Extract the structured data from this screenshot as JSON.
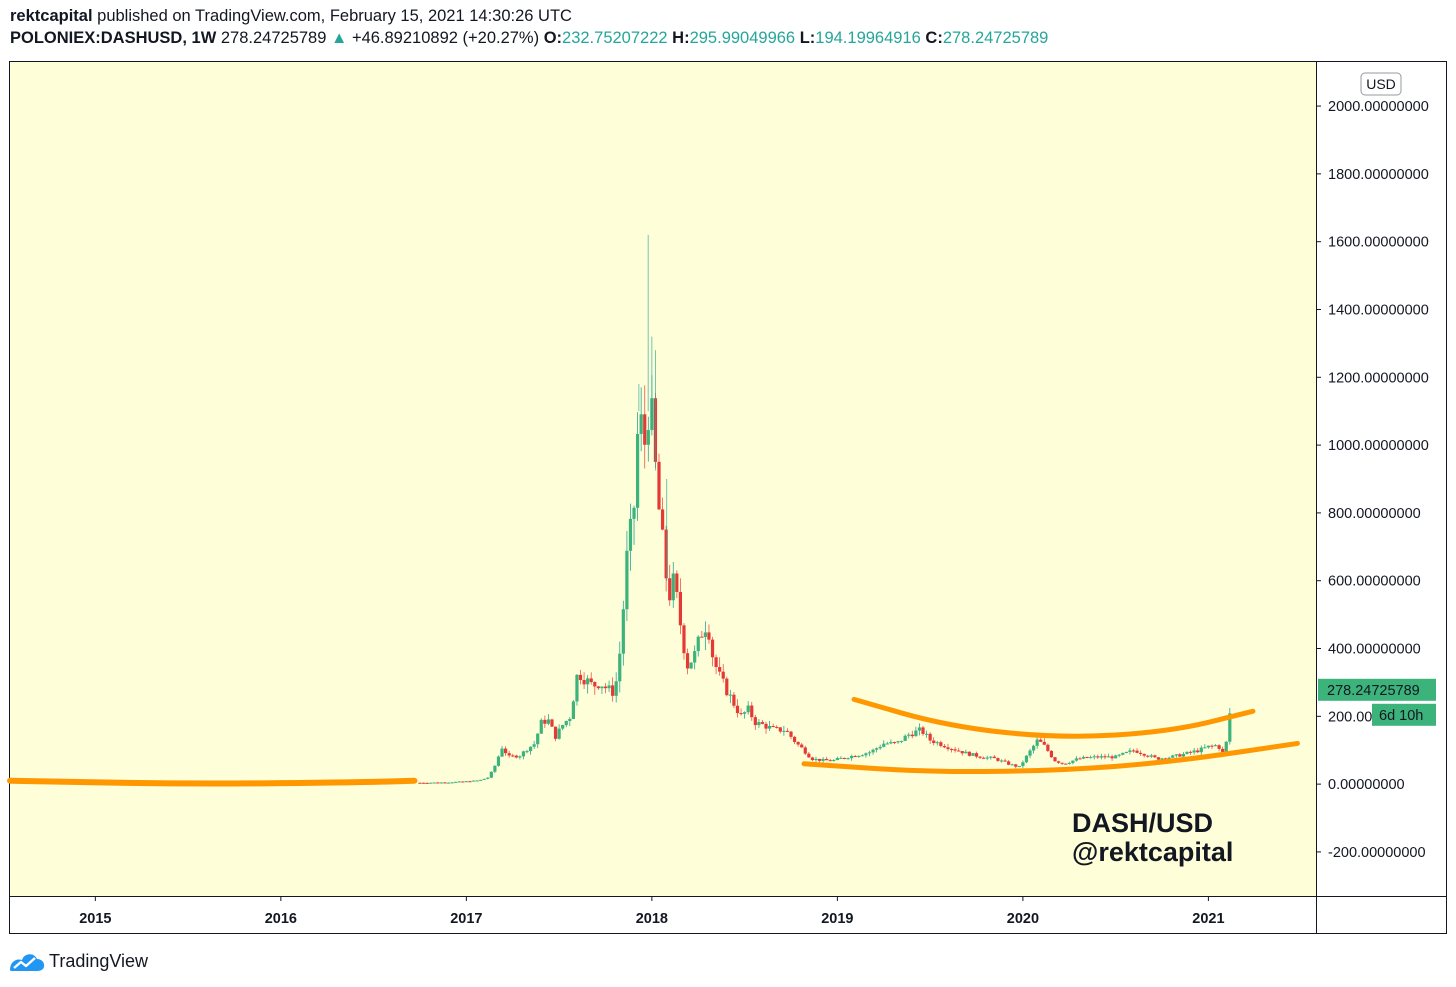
{
  "header": {
    "author": "rektcapital",
    "published": "published on TradingView.com, February 15, 2021 14:30:26 UTC",
    "symbol": "POLONIEX:DASHUSD, 1W",
    "last": "278.24725789",
    "change_arrow": "▲",
    "change": "+46.89210892 (+20.27%)",
    "o_label": "O:",
    "o_value": "232.75207222",
    "h_label": "H:",
    "h_value": "295.99049966",
    "l_label": "L:",
    "l_value": "194.19964916",
    "c_label": "C:",
    "c_value": "278.24725789"
  },
  "currency_badge": "USD",
  "price_label": "278.24725789",
  "countdown_label": "6d 10h",
  "watermark": {
    "line1": "DASH/USD",
    "line2": "@rektcapital"
  },
  "footer": {
    "brand": "TradingView",
    "logo_icon": "tradingview-logo-icon"
  },
  "colors": {
    "background": "#fefed8",
    "up": "#26a69a",
    "up_fill": "#3cb37a",
    "down": "#ef5350",
    "down_fill": "#e53935",
    "annotation": "#ff9800",
    "label_bg": "#3cb37a"
  },
  "chart_data": {
    "type": "candlestick",
    "symbol": "POLONIEX:DASHUSD",
    "interval": "1W",
    "title": "",
    "xlabel": "",
    "ylabel": "",
    "y_axis_ticks": [
      "2000.00000000",
      "1800.00000000",
      "1600.00000000",
      "1400.00000000",
      "1200.00000000",
      "1000.00000000",
      "800.00000000",
      "600.00000000",
      "400.00000000",
      "200.00000000",
      "0.00000000",
      "-200.00000000"
    ],
    "y_axis_values": [
      2000,
      1800,
      1600,
      1400,
      1200,
      1000,
      800,
      600,
      400,
      200,
      0,
      -200
    ],
    "ylim": [
      -330,
      2130
    ],
    "x_axis_ticks": [
      "2015",
      "2016",
      "2017",
      "2018",
      "2019",
      "2020",
      "2021"
    ],
    "x_axis_years": [
      2015,
      2016,
      2017,
      2018,
      2019,
      2020,
      2021
    ],
    "xlim": [
      2014.54,
      2021.58
    ],
    "grid": false,
    "last_close": 278.24725789,
    "annotations": [
      {
        "type": "curve",
        "points": [
          [
            2014.54,
            10
          ],
          [
            2015.5,
            0
          ],
          [
            2016.4,
            5
          ],
          [
            2016.72,
            10
          ]
        ]
      },
      {
        "type": "curve",
        "points": [
          [
            2018.82,
            60
          ],
          [
            2019.5,
            35
          ],
          [
            2020.2,
            40
          ],
          [
            2020.8,
            65
          ],
          [
            2021.48,
            120
          ]
        ]
      },
      {
        "type": "curve",
        "points": [
          [
            2019.09,
            250
          ],
          [
            2019.6,
            170
          ],
          [
            2020.2,
            135
          ],
          [
            2020.8,
            155
          ],
          [
            2021.24,
            215
          ]
        ]
      }
    ],
    "weekly_path": [
      [
        2016.75,
        4
      ],
      [
        2016.9,
        5
      ],
      [
        2017.0,
        8
      ],
      [
        2017.07,
        11
      ],
      [
        2017.12,
        20
      ],
      [
        2017.16,
        60
      ],
      [
        2017.19,
        110
      ],
      [
        2017.23,
        80
      ],
      [
        2017.29,
        85
      ],
      [
        2017.33,
        105
      ],
      [
        2017.37,
        120
      ],
      [
        2017.4,
        180
      ],
      [
        2017.44,
        190
      ],
      [
        2017.48,
        140
      ],
      [
        2017.52,
        175
      ],
      [
        2017.56,
        200
      ],
      [
        2017.6,
        330
      ],
      [
        2017.64,
        310
      ],
      [
        2017.68,
        290
      ],
      [
        2017.72,
        300
      ],
      [
        2017.76,
        280
      ],
      [
        2017.8,
        270
      ],
      [
        2017.83,
        400
      ],
      [
        2017.87,
        700
      ],
      [
        2017.9,
        780
      ],
      [
        2017.93,
        1100
      ],
      [
        2017.96,
        1000
      ],
      [
        2017.99,
        1150
      ],
      [
        2018.03,
        850
      ],
      [
        2018.06,
        700
      ],
      [
        2018.09,
        550
      ],
      [
        2018.12,
        600
      ],
      [
        2018.16,
        450
      ],
      [
        2018.19,
        350
      ],
      [
        2018.23,
        380
      ],
      [
        2018.27,
        450
      ],
      [
        2018.3,
        480
      ],
      [
        2018.33,
        370
      ],
      [
        2018.37,
        310
      ],
      [
        2018.41,
        270
      ],
      [
        2018.44,
        240
      ],
      [
        2018.48,
        200
      ],
      [
        2018.52,
        220
      ],
      [
        2018.56,
        180
      ],
      [
        2018.6,
        175
      ],
      [
        2018.66,
        160
      ],
      [
        2018.72,
        160
      ],
      [
        2018.78,
        120
      ],
      [
        2018.82,
        100
      ],
      [
        2018.86,
        75
      ],
      [
        2018.92,
        70
      ],
      [
        2018.98,
        70
      ],
      [
        2019.05,
        80
      ],
      [
        2019.1,
        85
      ],
      [
        2019.18,
        95
      ],
      [
        2019.25,
        120
      ],
      [
        2019.32,
        120
      ],
      [
        2019.38,
        145
      ],
      [
        2019.45,
        160
      ],
      [
        2019.5,
        130
      ],
      [
        2019.55,
        120
      ],
      [
        2019.62,
        105
      ],
      [
        2019.7,
        90
      ],
      [
        2019.78,
        80
      ],
      [
        2019.85,
        75
      ],
      [
        2019.92,
        60
      ],
      [
        2019.98,
        50
      ],
      [
        2020.03,
        90
      ],
      [
        2020.08,
        130
      ],
      [
        2020.12,
        110
      ],
      [
        2020.17,
        70
      ],
      [
        2020.22,
        60
      ],
      [
        2020.3,
        75
      ],
      [
        2020.4,
        80
      ],
      [
        2020.5,
        80
      ],
      [
        2020.6,
        100
      ],
      [
        2020.65,
        90
      ],
      [
        2020.72,
        75
      ],
      [
        2020.8,
        80
      ],
      [
        2020.88,
        90
      ],
      [
        2020.95,
        100
      ],
      [
        2021.0,
        110
      ],
      [
        2021.05,
        115
      ],
      [
        2021.08,
        90
      ],
      [
        2021.1,
        130
      ],
      [
        2021.12,
        232
      ],
      [
        2021.13,
        278
      ]
    ],
    "spikes": [
      [
        2017.98,
        1620
      ],
      [
        2018.0,
        1320
      ],
      [
        2018.02,
        1280
      ],
      [
        2017.93,
        1180
      ],
      [
        2018.08,
        900
      ]
    ]
  }
}
